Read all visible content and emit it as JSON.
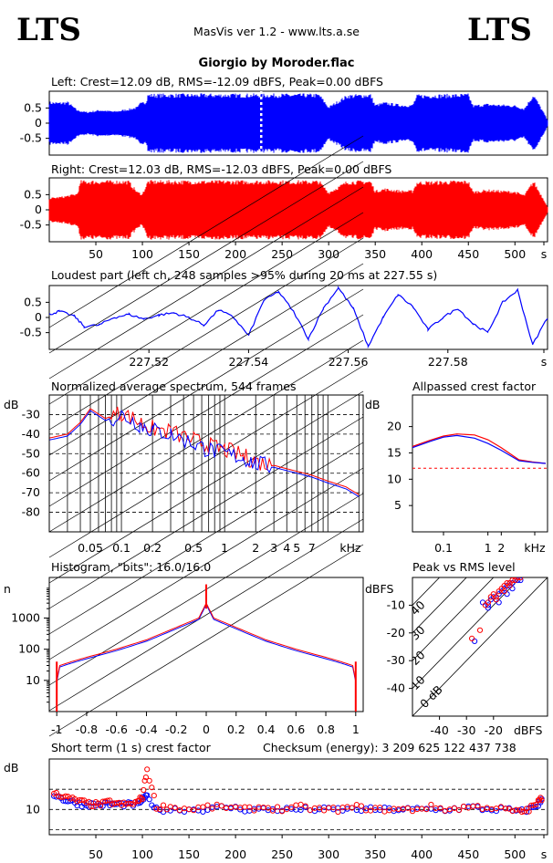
{
  "header": {
    "logo_left": "LTS",
    "logo_right": "LTS",
    "version": "MasVis ver 1.2 - www.lts.a.se",
    "file_title": "Giorgio by Moroder.flac"
  },
  "colors": {
    "left": "#0000ff",
    "right": "#ff0000",
    "axis": "#000000"
  },
  "chart_data": [
    {
      "id": "left",
      "type": "area",
      "title": "Left: Crest=12.09 dB, RMS=-12.09 dBFS, Peak=0.00 dBFS",
      "yticks": [
        "0.5",
        "0",
        "-0.5"
      ],
      "ylim": [
        -1,
        1
      ],
      "xlim": [
        0,
        535
      ],
      "marker_time_s": 227.55,
      "envelope": [
        [
          0,
          0.72
        ],
        [
          10,
          0.7
        ],
        [
          20,
          0.72
        ],
        [
          30,
          0.45
        ],
        [
          40,
          0.38
        ],
        [
          55,
          0.45
        ],
        [
          70,
          0.4
        ],
        [
          85,
          0.48
        ],
        [
          95,
          0.55
        ],
        [
          100,
          0.8
        ],
        [
          104,
          0.7
        ],
        [
          106,
          0.98
        ],
        [
          150,
          0.98
        ],
        [
          200,
          0.98
        ],
        [
          260,
          0.98
        ],
        [
          290,
          0.98
        ],
        [
          300,
          0.55
        ],
        [
          310,
          0.75
        ],
        [
          320,
          0.95
        ],
        [
          345,
          0.98
        ],
        [
          350,
          0.62
        ],
        [
          360,
          0.7
        ],
        [
          378,
          0.62
        ],
        [
          390,
          0.62
        ],
        [
          395,
          0.95
        ],
        [
          450,
          0.98
        ],
        [
          455,
          0.6
        ],
        [
          470,
          0.65
        ],
        [
          500,
          0.6
        ],
        [
          510,
          0.5
        ],
        [
          520,
          0.98
        ],
        [
          532,
          0.3
        ],
        [
          535,
          0.1
        ]
      ]
    },
    {
      "id": "right",
      "type": "area",
      "title": "Right: Crest=12.03 dB, RMS=-12.03 dBFS, Peak=0.00 dBFS",
      "yticks": [
        "0.5",
        "0",
        "-0.5"
      ],
      "ylim": [
        -1,
        1
      ],
      "xlim": [
        0,
        535
      ],
      "xticks": [
        "50",
        "100",
        "150",
        "200",
        "250",
        "300",
        "350",
        "400",
        "450",
        "500",
        "s"
      ],
      "envelope": [
        [
          0,
          0.4
        ],
        [
          15,
          0.45
        ],
        [
          30,
          0.55
        ],
        [
          34,
          0.98
        ],
        [
          85,
          0.98
        ],
        [
          95,
          0.6
        ],
        [
          100,
          0.55
        ],
        [
          106,
          0.98
        ],
        [
          150,
          0.98
        ],
        [
          200,
          0.98
        ],
        [
          260,
          0.98
        ],
        [
          290,
          0.98
        ],
        [
          300,
          0.6
        ],
        [
          310,
          0.78
        ],
        [
          320,
          0.97
        ],
        [
          345,
          0.98
        ],
        [
          350,
          0.65
        ],
        [
          360,
          0.72
        ],
        [
          378,
          0.65
        ],
        [
          390,
          0.65
        ],
        [
          395,
          0.95
        ],
        [
          450,
          0.98
        ],
        [
          455,
          0.62
        ],
        [
          470,
          0.68
        ],
        [
          500,
          0.62
        ],
        [
          510,
          0.5
        ],
        [
          520,
          0.98
        ],
        [
          532,
          0.3
        ],
        [
          535,
          0.1
        ]
      ]
    },
    {
      "id": "loudest",
      "type": "line",
      "title": "Loudest part (left  ch, 248 samples >95% during 20 ms at 227.55 s)",
      "yticks": [
        "0.5",
        "0",
        "-0.5"
      ],
      "ylim": [
        -1,
        1
      ],
      "xlim": [
        227.5,
        227.6
      ],
      "xticks": [
        "227.52",
        "227.54",
        "227.56",
        "227.58",
        "s"
      ],
      "x": [
        227.5,
        227.502,
        227.505,
        227.507,
        227.51,
        227.513,
        227.516,
        227.519,
        227.522,
        227.525,
        227.528,
        227.531,
        227.534,
        227.537,
        227.54,
        227.543,
        227.546,
        227.549,
        227.552,
        227.555,
        227.558,
        227.561,
        227.564,
        227.567,
        227.57,
        227.573,
        227.576,
        227.579,
        227.582,
        227.585,
        227.588,
        227.591,
        227.594,
        227.597,
        227.6
      ],
      "y": [
        0.1,
        0.2,
        0.05,
        -0.3,
        -0.25,
        0.0,
        0.1,
        -0.05,
        0.08,
        0.15,
        0.0,
        -0.25,
        0.25,
        0.0,
        -0.6,
        0.55,
        0.85,
        0.2,
        -0.7,
        0.3,
        0.98,
        0.3,
        -0.95,
        0.0,
        0.75,
        0.35,
        -0.4,
        0.0,
        0.3,
        -0.2,
        -0.5,
        0.5,
        0.9,
        -0.9,
        0.0
      ]
    },
    {
      "id": "spectrum",
      "type": "line",
      "title": "Normalized average spectrum, 544 frames",
      "ylabel": "dB",
      "yticks": [
        "-30",
        "-40",
        "-50",
        "-60",
        "-70",
        "-80"
      ],
      "ylim": [
        -90,
        -20
      ],
      "xlim": [
        0.02,
        22
      ],
      "xticks": [
        "0.05",
        "0.1",
        "0.2",
        "0.5",
        "1",
        "2",
        "3",
        "4",
        "5",
        "7",
        "kHz"
      ],
      "series": [
        {
          "id": "left",
          "x": [
            0.02,
            0.03,
            0.04,
            0.05,
            0.07,
            0.1,
            0.15,
            0.2,
            0.3,
            0.5,
            0.7,
            1,
            1.5,
            2,
            3,
            5,
            7,
            10,
            15,
            20
          ],
          "y": [
            -43,
            -41,
            -35,
            -28,
            -33,
            -30,
            -35,
            -38,
            -40,
            -45,
            -48,
            -50,
            -52,
            -55,
            -57,
            -60,
            -62,
            -65,
            -68,
            -72
          ]
        },
        {
          "id": "right",
          "x": [
            0.02,
            0.03,
            0.04,
            0.05,
            0.07,
            0.1,
            0.15,
            0.2,
            0.3,
            0.5,
            0.7,
            1,
            1.5,
            2,
            3,
            5,
            7,
            10,
            15,
            20
          ],
          "y": [
            -42,
            -40,
            -34,
            -27,
            -32,
            -29,
            -34,
            -37,
            -39,
            -43,
            -46,
            -48,
            -51,
            -54,
            -56,
            -59,
            -61,
            -64,
            -67,
            -71
          ]
        }
      ]
    },
    {
      "id": "crest",
      "type": "line",
      "title": "Allpassed crest factor",
      "ylabel": "dB",
      "yticks": [
        "20",
        "15",
        "10",
        "5"
      ],
      "ylim": [
        0,
        26
      ],
      "xlim": [
        0.02,
        22
      ],
      "xticks": [
        "0.1",
        "1",
        "2",
        "kHz"
      ],
      "reference_db": 12.1,
      "series": [
        {
          "id": "left",
          "x": [
            0.02,
            0.05,
            0.1,
            0.2,
            0.5,
            1,
            2,
            5,
            10,
            20
          ],
          "y": [
            16.0,
            17.2,
            18.0,
            18.3,
            17.8,
            16.8,
            15.5,
            13.5,
            13.2,
            13.0
          ]
        },
        {
          "id": "right",
          "x": [
            0.02,
            0.05,
            0.1,
            0.2,
            0.5,
            1,
            2,
            5,
            10,
            20
          ],
          "y": [
            16.2,
            17.4,
            18.2,
            18.6,
            18.4,
            17.5,
            16.0,
            13.7,
            13.3,
            13.0
          ]
        }
      ]
    },
    {
      "id": "histogram",
      "type": "line",
      "title": "Histogram, \"bits\": 16.0/16.0",
      "ylabel": "n",
      "yticks": [
        "1000",
        "100",
        "10"
      ],
      "ylim": [
        1,
        20000
      ],
      "xlim": [
        -1.05,
        1.05
      ],
      "xticks": [
        "-1",
        "-0.8",
        "-0.6",
        "-0.4",
        "-0.2",
        "0",
        "0.2",
        "0.4",
        "0.6",
        "0.8",
        "1"
      ],
      "x": [
        -1,
        -0.98,
        -0.9,
        -0.8,
        -0.6,
        -0.4,
        -0.2,
        -0.05,
        0,
        0.05,
        0.2,
        0.4,
        0.6,
        0.8,
        0.9,
        0.98,
        1
      ],
      "y": [
        10,
        30,
        40,
        55,
        100,
        200,
        500,
        1000,
        3000,
        1000,
        500,
        200,
        100,
        55,
        40,
        30,
        10
      ]
    },
    {
      "id": "peak_vs_rms",
      "type": "scatter",
      "title": "Peak vs RMS level",
      "ylabel": "dBFS",
      "xlabel": "dBFS",
      "yticks": [
        "-10",
        "-20",
        "-30",
        "-40"
      ],
      "xticks": [
        "-40",
        "-30",
        "-20"
      ],
      "xlim": [
        -50,
        0
      ],
      "ylim": [
        -50,
        0
      ],
      "diagonals": [
        "40",
        "30",
        "20",
        "10",
        "0 dB"
      ],
      "series": [
        {
          "id": "left",
          "x": [
            -27,
            -24,
            -22,
            -21,
            -20,
            -19,
            -18,
            -17,
            -16,
            -15,
            -14,
            -13,
            -12,
            -11,
            -22,
            -18,
            -15,
            -13,
            -10
          ],
          "y": [
            -23,
            -9,
            -10,
            -8,
            -7,
            -8,
            -6,
            -5,
            -4,
            -3,
            -2,
            -2,
            -1,
            -1,
            -11,
            -9,
            -6,
            -4,
            -1
          ]
        },
        {
          "id": "right",
          "x": [
            -28,
            -25,
            -22,
            -21,
            -20,
            -19,
            -18,
            -17,
            -16,
            -15,
            -14,
            -13,
            -12,
            -11,
            -23,
            -19,
            -16,
            -14,
            -10
          ],
          "y": [
            -22,
            -19,
            -9,
            -7,
            -6,
            -7,
            -5,
            -4,
            -3,
            -2,
            -2,
            -1,
            -1,
            0,
            -10,
            -8,
            -5,
            -3,
            0
          ]
        }
      ]
    },
    {
      "id": "short_term",
      "type": "scatter",
      "title": "Short term (1 s) crest factor",
      "checksum": "Checksum (energy):  3 209 625 122 437 738",
      "ylabel": "dB",
      "yticks": [
        "10"
      ],
      "ylim": [
        0,
        30
      ],
      "xlim": [
        0,
        535
      ],
      "xticks": [
        "50",
        "100",
        "150",
        "200",
        "250",
        "300",
        "350",
        "400",
        "450",
        "500",
        "s"
      ],
      "series": [
        {
          "id": "left",
          "x": [
            5,
            15,
            25,
            35,
            45,
            55,
            65,
            75,
            85,
            95,
            100,
            105,
            115,
            130,
            150,
            170,
            190,
            210,
            230,
            250,
            270,
            290,
            310,
            330,
            350,
            370,
            390,
            410,
            430,
            450,
            470,
            490,
            505,
            515,
            525,
            530
          ],
          "y": [
            16,
            14,
            13,
            12,
            12,
            12,
            12,
            12,
            12,
            12,
            14,
            15,
            10,
            10,
            10,
            10,
            11,
            10,
            10,
            10,
            10,
            10,
            10,
            10,
            10,
            10,
            10,
            10,
            10,
            11,
            10,
            10,
            9,
            10,
            12,
            14
          ]
        },
        {
          "id": "right",
          "x": [
            5,
            15,
            25,
            35,
            45,
            55,
            65,
            75,
            85,
            95,
            100,
            105,
            115,
            130,
            150,
            170,
            190,
            210,
            230,
            250,
            270,
            290,
            310,
            330,
            350,
            370,
            390,
            410,
            430,
            450,
            470,
            490,
            505,
            515,
            525,
            530
          ],
          "y": [
            17,
            15,
            14,
            13,
            12,
            12,
            13,
            12,
            12,
            13,
            15,
            26,
            11,
            11,
            10,
            11,
            11,
            10,
            11,
            10,
            11,
            10,
            10,
            11,
            10,
            10,
            10,
            11,
            10,
            11,
            11,
            10,
            9,
            10,
            13,
            15
          ]
        }
      ]
    }
  ]
}
